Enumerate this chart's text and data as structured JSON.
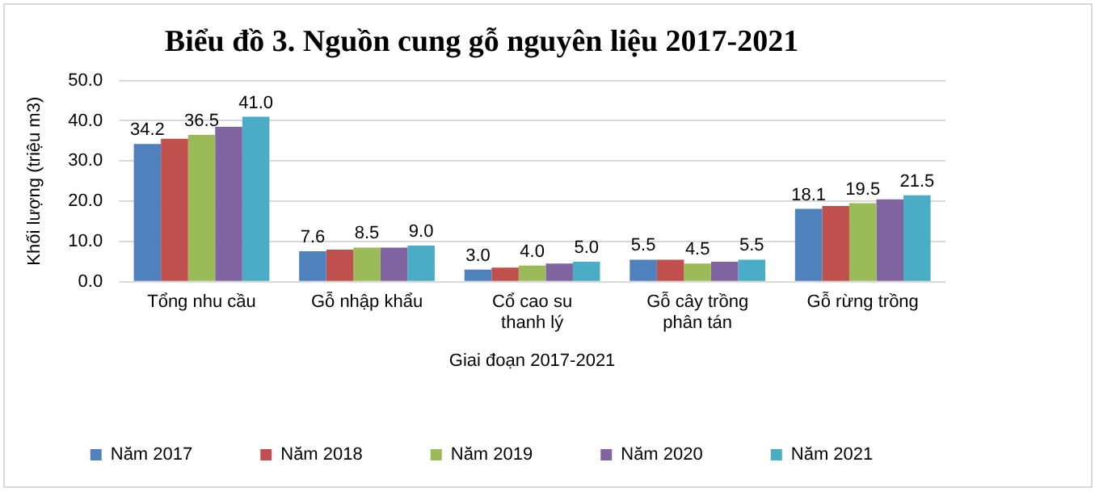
{
  "chart_data": {
    "type": "bar",
    "title": "Biểu đồ 3. Nguồn cung gỗ nguyên liệu 2017-2021",
    "xlabel": "Giai đoạn 2017-2021",
    "ylabel": "Khối lượng (triệu m3)",
    "categories": [
      "Tổng nhu cầu",
      "Gỗ nhập khẩu",
      "Cổ cao su thanh lý",
      "Gỗ cây trồng phân tán",
      "Gỗ rừng trồng"
    ],
    "series": [
      {
        "name": "Năm 2017",
        "color": "#4f81bd",
        "values": [
          34.2,
          7.6,
          3.0,
          5.5,
          18.1
        ],
        "value_labels": [
          "34.2",
          "7.6",
          "3.0",
          "5.5",
          "18.1"
        ]
      },
      {
        "name": "Năm 2018",
        "color": "#c0504d",
        "values": [
          35.5,
          8.0,
          3.5,
          5.5,
          18.8
        ]
      },
      {
        "name": "Năm 2019",
        "color": "#9bbb59",
        "values": [
          36.5,
          8.5,
          4.0,
          4.5,
          19.5
        ],
        "value_labels": [
          "36.5",
          "8.5",
          "4.0",
          "4.5",
          "19.5"
        ]
      },
      {
        "name": "Năm 2020",
        "color": "#8064a2",
        "values": [
          38.5,
          8.5,
          4.5,
          5.0,
          20.5
        ]
      },
      {
        "name": "Năm 2021",
        "color": "#4bacc6",
        "values": [
          41.0,
          9.0,
          5.0,
          5.5,
          21.5
        ],
        "value_labels": [
          "41.0",
          "9.0",
          "5.0",
          "5.5",
          "21.5"
        ]
      }
    ],
    "ylim": [
      0,
      50
    ],
    "yticks": [
      {
        "value": 0,
        "label": "0.0"
      },
      {
        "value": 10,
        "label": "10.0"
      },
      {
        "value": 20,
        "label": "20.0"
      },
      {
        "value": 30,
        "label": "30.0"
      },
      {
        "value": 40,
        "label": "40.0"
      },
      {
        "value": 50,
        "label": "50.0"
      }
    ],
    "grid": "y",
    "legend": "bottom"
  }
}
